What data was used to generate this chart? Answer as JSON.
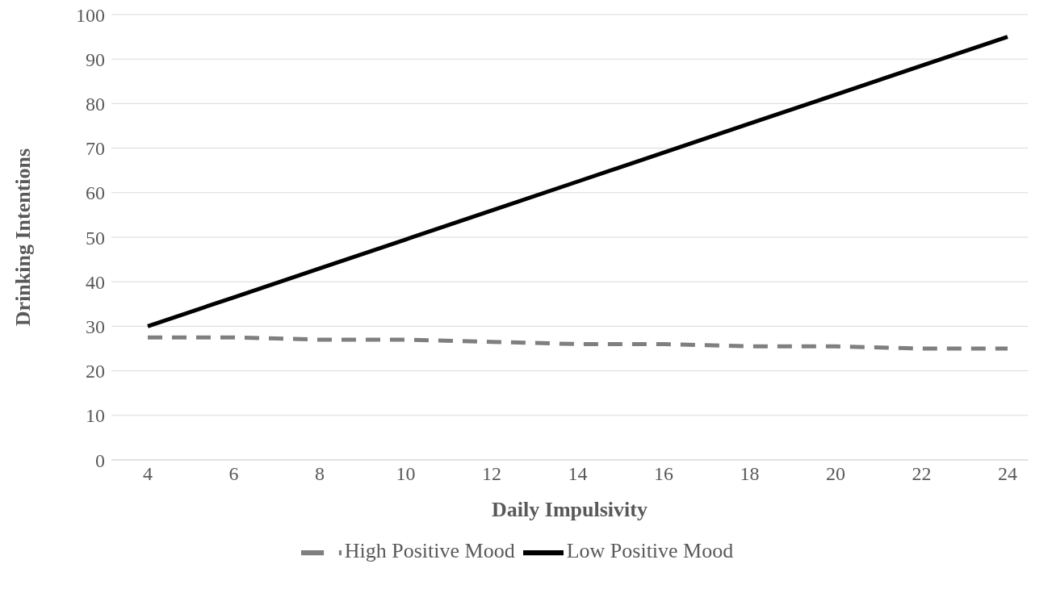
{
  "chart_data": {
    "type": "line",
    "xlabel": "Daily Impulsivity",
    "ylabel": "Drinking Intentions",
    "categories": [
      "4",
      "6",
      "8",
      "10",
      "12",
      "14",
      "16",
      "18",
      "20",
      "22",
      "24"
    ],
    "series": [
      {
        "name": "Low Positive Mood",
        "color": "#000000",
        "line_style": "solid",
        "values": [
          30,
          36.5,
          43,
          49.5,
          56,
          62.5,
          69,
          75.5,
          82,
          88.5,
          95
        ]
      },
      {
        "name": "High Positive Mood",
        "color": "#7f7f7f",
        "line_style": "dashed",
        "values": [
          27.5,
          27.5,
          27,
          27,
          26.5,
          26,
          26,
          25.5,
          25.5,
          25,
          25
        ]
      }
    ],
    "ylim": [
      0,
      100
    ],
    "yticks": [
      0,
      10,
      20,
      30,
      40,
      50,
      60,
      70,
      80,
      90,
      100
    ],
    "grid": "y",
    "legend": "bottom",
    "marker": "none"
  }
}
